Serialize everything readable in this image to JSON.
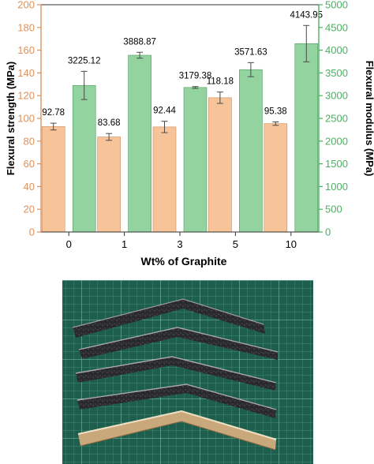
{
  "chart_data": {
    "type": "bar",
    "categories": [
      "0",
      "1",
      "3",
      "5",
      "10"
    ],
    "xlabel": "Wt% of Graphite",
    "series": [
      {
        "name": "Flexural strength",
        "axis": "left",
        "values": [
          92.78,
          83.68,
          92.44,
          118.18,
          95.38
        ],
        "errors": [
          3,
          3,
          5,
          5,
          1.5
        ],
        "labels": [
          "92.78",
          "83.68",
          "92.44",
          "118.18",
          "95.38"
        ],
        "color": "#f7c49a",
        "edge": "#c98c5e"
      },
      {
        "name": "Flexural modulus",
        "axis": "right",
        "values": [
          3225.12,
          3888.87,
          3179.38,
          3571.63,
          4143.95
        ],
        "errors": [
          310,
          65,
          20,
          155,
          400
        ],
        "labels": [
          "3225.12",
          "3888.87",
          "3179.38",
          "3571.63",
          "4143.95"
        ],
        "color": "#93d3a0",
        "edge": "#4d9b5d"
      }
    ],
    "y_left": {
      "label": "Flexural strength (MPa)",
      "lim": [
        0,
        200
      ],
      "ticks": [
        "0",
        "20",
        "40",
        "60",
        "80",
        "100",
        "120",
        "140",
        "160",
        "180",
        "200"
      ],
      "color": "#e0915a"
    },
    "y_right": {
      "label": "Flexural modulus (MPa)",
      "lim": [
        0,
        5000
      ],
      "ticks": [
        "0",
        "500",
        "1000",
        "1500",
        "2000",
        "2500",
        "3000",
        "3500",
        "4000",
        "4500",
        "5000"
      ],
      "color": "#4caf62"
    },
    "grid": false,
    "legend": "none"
  }
}
